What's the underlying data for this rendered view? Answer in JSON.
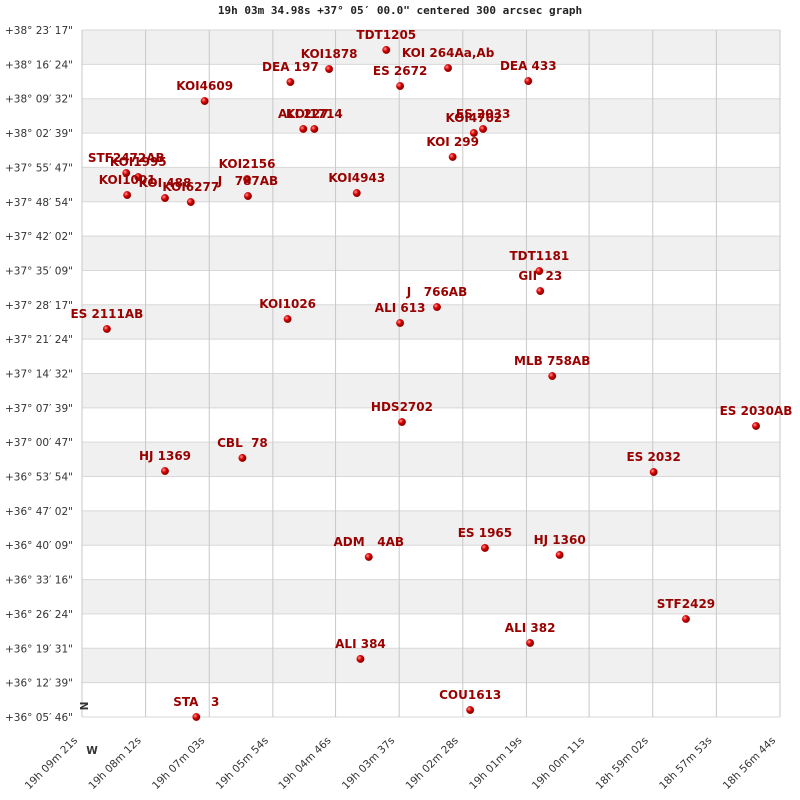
{
  "chart_data": {
    "type": "scatter",
    "title": "19h 03m 34.98s +37° 05′ 00.0\" centered 300 arcsec graph",
    "compass": [
      "N",
      "W"
    ],
    "color": "#cc0000",
    "label_color": "#990000",
    "grid": true,
    "xlim": [
      68961,
      68204
    ],
    "ylim": [
      129946,
      138197
    ],
    "xticks": [
      {
        "value": 68961,
        "label": "19h 09m 21s"
      },
      {
        "value": 68892,
        "label": "19h 08m 12s"
      },
      {
        "value": 68823,
        "label": "19h 07m 03s"
      },
      {
        "value": 68754,
        "label": "19h 05m 54s"
      },
      {
        "value": 68686,
        "label": "19h 04m 46s"
      },
      {
        "value": 68617,
        "label": "19h 03m 37s"
      },
      {
        "value": 68548,
        "label": "19h 02m 28s"
      },
      {
        "value": 68479,
        "label": "19h 01m 19s"
      },
      {
        "value": 68411,
        "label": "19h 00m 11s"
      },
      {
        "value": 68342,
        "label": "18h 59m 02s"
      },
      {
        "value": 68273,
        "label": "18h 57m 53s"
      },
      {
        "value": 68204,
        "label": "18h 56m 44s"
      }
    ],
    "yticks": [
      {
        "value": 129946,
        "label": "+36° 05′ 46\""
      },
      {
        "value": 130359,
        "label": "+36° 12′ 39\""
      },
      {
        "value": 130771,
        "label": "+36° 19′ 31\""
      },
      {
        "value": 131184,
        "label": "+36° 26′ 24\""
      },
      {
        "value": 131596,
        "label": "+36° 33′ 16\""
      },
      {
        "value": 132009,
        "label": "+36° 40′ 09\""
      },
      {
        "value": 132422,
        "label": "+36° 47′ 02\""
      },
      {
        "value": 132834,
        "label": "+36° 53′ 54\""
      },
      {
        "value": 133247,
        "label": "+37° 00′ 47\""
      },
      {
        "value": 133659,
        "label": "+37° 07′ 39\""
      },
      {
        "value": 134072,
        "label": "+37° 14′ 32\""
      },
      {
        "value": 134484,
        "label": "+37° 21′ 24\""
      },
      {
        "value": 134897,
        "label": "+37° 28′ 17\""
      },
      {
        "value": 135309,
        "label": "+37° 35′ 09\""
      },
      {
        "value": 135722,
        "label": "+37° 42′ 02\""
      },
      {
        "value": 136134,
        "label": "+37° 48′ 54\""
      },
      {
        "value": 136547,
        "label": "+37° 55′ 47\""
      },
      {
        "value": 136959,
        "label": "+38° 02′ 39\""
      },
      {
        "value": 137372,
        "label": "+38° 09′ 32\""
      },
      {
        "value": 137784,
        "label": "+38° 16′ 24\""
      },
      {
        "value": 138197,
        "label": "+38° 23′ 17\""
      }
    ],
    "points": [
      {
        "label": "TDT1205",
        "x": 68631,
        "y": 137957
      },
      {
        "label": "KOI1878",
        "x": 68693,
        "y": 137728
      },
      {
        "label": "KOI 264Aa,Ab",
        "x": 68564,
        "y": 137740
      },
      {
        "label": "DEA 197",
        "x": 68735,
        "y": 137572
      },
      {
        "label": "ES 2672",
        "x": 68616,
        "y": 137524
      },
      {
        "label": "DEA 433",
        "x": 68477,
        "y": 137584
      },
      {
        "label": "KOI4609",
        "x": 68828,
        "y": 137344
      },
      {
        "label": "ALI 227",
        "x": 68721,
        "y": 137008
      },
      {
        "label": "KOI1714",
        "x": 68709,
        "y": 137008
      },
      {
        "label": "ES 2033",
        "x": 68526,
        "y": 137008
      },
      {
        "label": "KOI4702",
        "x": 68536,
        "y": 136960
      },
      {
        "label": "KOI 299",
        "x": 68559,
        "y": 136672
      },
      {
        "label": "STF2472AB",
        "x": 68913,
        "y": 136479
      },
      {
        "label": "KOI1995",
        "x": 68900,
        "y": 136431
      },
      {
        "label": "KOI1001",
        "x": 68912,
        "y": 136215
      },
      {
        "label": "KOI 488",
        "x": 68871,
        "y": 136179
      },
      {
        "label": "KOI6277",
        "x": 68843,
        "y": 136131
      },
      {
        "label": "KOI2156",
        "x": 68782,
        "y": 136407
      },
      {
        "label": "J   787AB",
        "x": 68781,
        "y": 136203
      },
      {
        "label": "KOI4943",
        "x": 68663,
        "y": 136239
      },
      {
        "label": "TDT1181",
        "x": 68465,
        "y": 135302
      },
      {
        "label": "GII  23",
        "x": 68464,
        "y": 135062
      },
      {
        "label": "J   766AB",
        "x": 68576,
        "y": 134870
      },
      {
        "label": "ALI 613",
        "x": 68616,
        "y": 134678
      },
      {
        "label": "KOI1026",
        "x": 68738,
        "y": 134726
      },
      {
        "label": "ES 2111AB",
        "x": 68934,
        "y": 134606
      },
      {
        "label": "MLB 758AB",
        "x": 68451,
        "y": 134041
      },
      {
        "label": "HDS2702",
        "x": 68614,
        "y": 133489
      },
      {
        "label": "ES 2030AB",
        "x": 68230,
        "y": 133441
      },
      {
        "label": "CBL  78",
        "x": 68787,
        "y": 133057
      },
      {
        "label": "HJ 1369",
        "x": 68871,
        "y": 132900
      },
      {
        "label": "ES 2032",
        "x": 68341,
        "y": 132888
      },
      {
        "label": "ADM   4AB",
        "x": 68650,
        "y": 131868
      },
      {
        "label": "ES 1965",
        "x": 68524,
        "y": 131976
      },
      {
        "label": "HJ 1360",
        "x": 68443,
        "y": 131892
      },
      {
        "label": "STF2429",
        "x": 68306,
        "y": 131123
      },
      {
        "label": "ALI 382",
        "x": 68475,
        "y": 130835
      },
      {
        "label": "ALI 384",
        "x": 68659,
        "y": 130643
      },
      {
        "label": "COU1613",
        "x": 68540,
        "y": 130030
      },
      {
        "label": "STA   3",
        "x": 68837,
        "y": 129946
      }
    ]
  }
}
